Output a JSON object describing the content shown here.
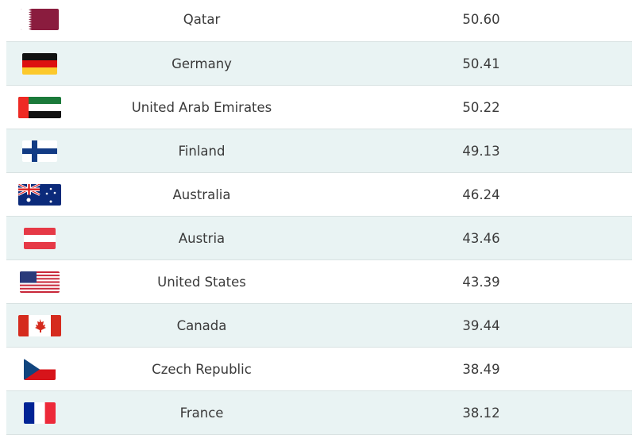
{
  "rows": [
    {
      "country": "Qatar",
      "value": "50.60",
      "flag": "qatar-flag-icon"
    },
    {
      "country": "Germany",
      "value": "50.41",
      "flag": "germany-flag-icon"
    },
    {
      "country": "United Arab Emirates",
      "value": "50.22",
      "flag": "uae-flag-icon"
    },
    {
      "country": "Finland",
      "value": "49.13",
      "flag": "finland-flag-icon"
    },
    {
      "country": "Australia",
      "value": "46.24",
      "flag": "australia-flag-icon"
    },
    {
      "country": "Austria",
      "value": "43.46",
      "flag": "austria-flag-icon"
    },
    {
      "country": "United States",
      "value": "43.39",
      "flag": "usa-flag-icon"
    },
    {
      "country": "Canada",
      "value": "39.44",
      "flag": "canada-flag-icon"
    },
    {
      "country": "Czech Republic",
      "value": "38.49",
      "flag": "czech-flag-icon"
    },
    {
      "country": "France",
      "value": "38.12",
      "flag": "france-flag-icon"
    }
  ],
  "colors": {
    "stripe": "#e9f3f3",
    "text": "#3a3a3a"
  }
}
